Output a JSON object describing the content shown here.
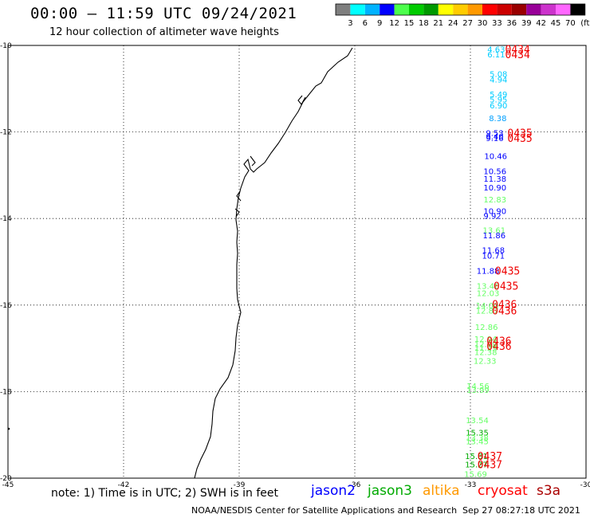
{
  "header": {
    "title": "00:00 – 11:59 UTC 09/24/2021",
    "subtitle": "12 hour collection of altimeter wave heights"
  },
  "colorbar": {
    "colors": [
      "#7f7f7f",
      "#00ffff",
      "#00b3ff",
      "#0000ff",
      "#4cff4c",
      "#00cc00",
      "#009900",
      "#ffff00",
      "#ffcc00",
      "#ff9900",
      "#ff0000",
      "#cc0000",
      "#990000",
      "#990099",
      "#cc33cc",
      "#ff66ff",
      "#000000"
    ],
    "labels": [
      "3",
      "6",
      "9",
      "12",
      "15",
      "18",
      "21",
      "24",
      "27",
      "30",
      "33",
      "36",
      "39",
      "42",
      "45",
      "70"
    ],
    "unit": "(ft)"
  },
  "axes": {
    "lat_labels": [
      "-10",
      "-12",
      "-14",
      "-16",
      "-18",
      "-20"
    ],
    "lon_labels": [
      "-45",
      "-42",
      "-39",
      "-36",
      "-33",
      "-30"
    ]
  },
  "observations": [
    {
      "t": "4.63",
      "c": "#00ccff",
      "lon": -32.56,
      "lat": -10.08
    },
    {
      "t": "6.11",
      "c": "#00ccff",
      "lon": -32.56,
      "lat": -10.2
    },
    {
      "t": "5.08",
      "c": "#00ccff",
      "lon": -32.5,
      "lat": -10.65
    },
    {
      "t": "4.94",
      "c": "#00ccff",
      "lon": -32.5,
      "lat": -10.78
    },
    {
      "t": "5.49",
      "c": "#00ccff",
      "lon": -32.5,
      "lat": -11.12
    },
    {
      "t": "5.95",
      "c": "#00ccff",
      "lon": -32.5,
      "lat": -11.24
    },
    {
      "t": "6.90",
      "c": "#00ccff",
      "lon": -32.5,
      "lat": -11.38
    },
    {
      "t": "8.38",
      "c": "#00a0ff",
      "lon": -32.52,
      "lat": -11.68
    },
    {
      "t": "9.53",
      "c": "#0000ff",
      "lon": -32.6,
      "lat": -12.02
    },
    {
      "t": "9.16",
      "c": "#0000ff",
      "lon": -32.6,
      "lat": -12.14
    },
    {
      "t": "9.40",
      "c": "#0000ff",
      "lon": -32.6,
      "lat": -12.1
    },
    {
      "t": "10.46",
      "c": "#0000ff",
      "lon": -32.64,
      "lat": -12.55
    },
    {
      "t": "10.56",
      "c": "#0000ff",
      "lon": -32.66,
      "lat": -12.9
    },
    {
      "t": "11.38",
      "c": "#0000ff",
      "lon": -32.66,
      "lat": -13.08
    },
    {
      "t": "10.90",
      "c": "#0000ff",
      "lon": -32.66,
      "lat": -13.28
    },
    {
      "t": "12.83",
      "c": "#66ff66",
      "lon": -32.66,
      "lat": -13.55
    },
    {
      "t": "10.90",
      "c": "#0000ff",
      "lon": -32.66,
      "lat": -13.82
    },
    {
      "t": "9.92",
      "c": "#0000ff",
      "lon": -32.66,
      "lat": -13.93
    },
    {
      "t": "13.61",
      "c": "#66ff66",
      "lon": -32.68,
      "lat": -14.26
    },
    {
      "t": "11.86",
      "c": "#0000ff",
      "lon": -32.68,
      "lat": -14.38
    },
    {
      "t": "11.68",
      "c": "#0000ff",
      "lon": -32.7,
      "lat": -14.72
    },
    {
      "t": "10.71",
      "c": "#0000ff",
      "lon": -32.7,
      "lat": -14.85
    },
    {
      "t": "11.88",
      "c": "#0000ff",
      "lon": -32.84,
      "lat": -15.2
    },
    {
      "t": "13.46",
      "c": "#66ff66",
      "lon": -32.84,
      "lat": -15.55
    },
    {
      "t": "12.03",
      "c": "#66ff66",
      "lon": -32.84,
      "lat": -15.72
    },
    {
      "t": "14.00",
      "c": "#66ff66",
      "lon": -32.86,
      "lat": -16.0
    },
    {
      "t": "12.87",
      "c": "#66ff66",
      "lon": -32.86,
      "lat": -16.12
    },
    {
      "t": "12.86",
      "c": "#66ff66",
      "lon": -32.88,
      "lat": -16.5
    },
    {
      "t": "12.94",
      "c": "#66ff66",
      "lon": -32.9,
      "lat": -16.78
    },
    {
      "t": "12.99",
      "c": "#66ff66",
      "lon": -32.9,
      "lat": -16.9
    },
    {
      "t": "11.29",
      "c": "#66ff66",
      "lon": -32.9,
      "lat": -16.98
    },
    {
      "t": "12.38",
      "c": "#66ff66",
      "lon": -32.9,
      "lat": -17.08
    },
    {
      "t": "12.33",
      "c": "#66ff66",
      "lon": -32.92,
      "lat": -17.28
    },
    {
      "t": "14.56",
      "c": "#66ff66",
      "lon": -33.1,
      "lat": -17.86
    },
    {
      "t": "13.99",
      "c": "#66ff66",
      "lon": -33.1,
      "lat": -17.96
    },
    {
      "t": "13.54",
      "c": "#66ff66",
      "lon": -33.12,
      "lat": -18.66
    },
    {
      "t": "15.35",
      "c": "#00aa00",
      "lon": -33.12,
      "lat": -18.94
    },
    {
      "t": "13.38",
      "c": "#66ff66",
      "lon": -33.12,
      "lat": -19.06
    },
    {
      "t": "13.45",
      "c": "#66ff66",
      "lon": -33.12,
      "lat": -19.14
    },
    {
      "t": "15.81",
      "c": "#00aa00",
      "lon": -33.14,
      "lat": -19.48
    },
    {
      "t": "15.27",
      "c": "#00aa00",
      "lon": -33.14,
      "lat": -19.68
    },
    {
      "t": "15.69",
      "c": "#66ff66",
      "lon": -33.16,
      "lat": -19.9
    }
  ],
  "cryosat_labels": [
    {
      "t": "0434",
      "lon": -32.1,
      "lat": -10.08
    },
    {
      "t": "0434",
      "lon": -32.1,
      "lat": -10.2
    },
    {
      "t": "0435",
      "lon": -32.04,
      "lat": -12.02
    },
    {
      "t": "0435",
      "lon": -32.04,
      "lat": -12.14
    },
    {
      "t": "0435",
      "lon": -32.36,
      "lat": -15.2
    },
    {
      "t": "0435",
      "lon": -32.4,
      "lat": -15.55
    },
    {
      "t": "0436",
      "lon": -32.44,
      "lat": -15.98
    },
    {
      "t": "0436",
      "lon": -32.44,
      "lat": -16.12
    },
    {
      "t": "0436",
      "lon": -32.58,
      "lat": -16.82
    },
    {
      "t": "0436",
      "lon": -32.58,
      "lat": -16.94
    },
    {
      "t": "0437",
      "lon": -32.82,
      "lat": -19.48
    },
    {
      "t": "0437",
      "lon": -32.82,
      "lat": -19.68
    }
  ],
  "footer": {
    "note": "note: 1) Time is in UTC; 2) SWH is in feet",
    "satellites": [
      {
        "name": "jason2",
        "color": "#0000ff"
      },
      {
        "name": "jason3",
        "color": "#00aa00"
      },
      {
        "name": "altika",
        "color": "#ff9900"
      },
      {
        "name": "cryosat",
        "color": "#ff0000"
      },
      {
        "name": "s3a",
        "color": "#aa0000"
      }
    ],
    "credit": "NOAA/NESDIS Center for Satellite Applications and Research",
    "timestamp": "Sep 27 08:27:18 UTC 2021"
  }
}
